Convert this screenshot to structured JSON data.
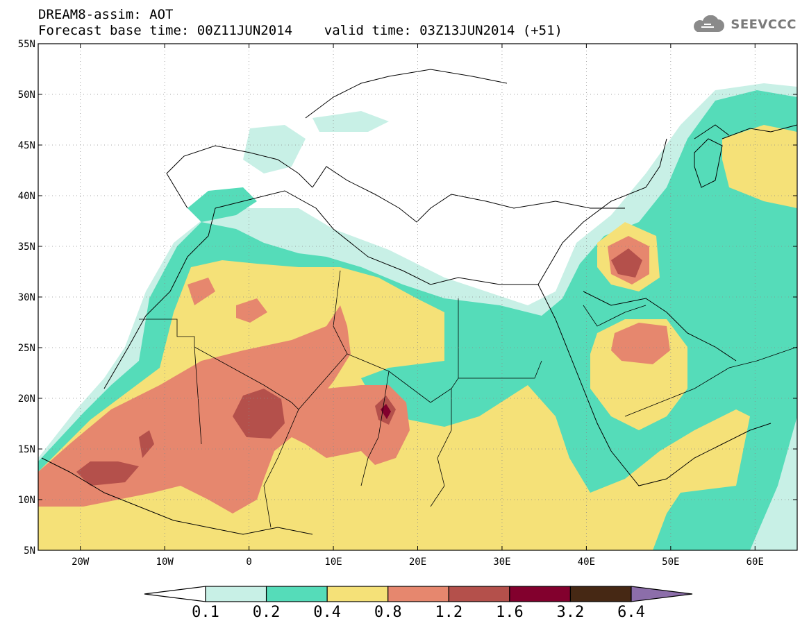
{
  "title": {
    "line1": "DREAM8-assim: AOT",
    "line2": "Forecast base time: 00Z11JUN2014    valid time: 03Z13JUN2014 (+51)"
  },
  "logo": {
    "text": "SEEVCCC",
    "icon": "cloud-icon"
  },
  "map": {
    "lat_range": [
      5,
      55
    ],
    "lon_range": [
      -25,
      65
    ],
    "lat_labels": [
      "55N",
      "50N",
      "45N",
      "40N",
      "35N",
      "30N",
      "25N",
      "20N",
      "15N",
      "10N",
      "5N"
    ],
    "lon_labels": [
      "20W",
      "10W",
      "0",
      "10E",
      "20E",
      "30E",
      "40E",
      "50E",
      "60E"
    ],
    "grid": true
  },
  "colorbar": {
    "labels": [
      "0.1",
      "0.2",
      "0.4",
      "0.8",
      "1.2",
      "1.6",
      "3.2",
      "6.4"
    ],
    "colors": [
      "#ffffff",
      "#c8f0e6",
      "#55dcb9",
      "#f5e178",
      "#e6876e",
      "#b4504b",
      "#82002d",
      "#462814",
      "#8c6eaa"
    ]
  }
}
